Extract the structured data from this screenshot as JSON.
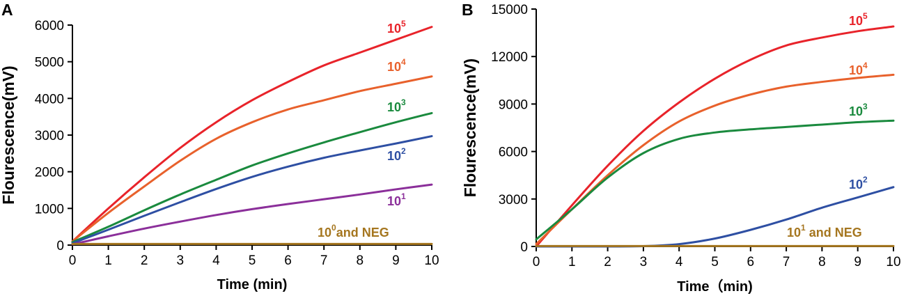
{
  "chart_data": [
    {
      "type": "line",
      "panel": "A",
      "xlabel": "Time (min)",
      "ylabel": "Flourescence(mV)",
      "xlim": [
        0,
        10
      ],
      "ylim": [
        0,
        6000
      ],
      "xticks": [
        0,
        1,
        2,
        3,
        4,
        5,
        6,
        7,
        8,
        9,
        10
      ],
      "yticks": [
        0,
        1000,
        2000,
        3000,
        4000,
        5000,
        6000
      ],
      "x": [
        0,
        1,
        2,
        3,
        4,
        5,
        6,
        7,
        8,
        9,
        10
      ],
      "series": [
        {
          "name": "10^5",
          "label_base": "10",
          "label_sup": "5",
          "label_suffix": "",
          "color": "#e8232a",
          "values": [
            100,
            1000,
            1850,
            2650,
            3350,
            3950,
            4450,
            4900,
            5250,
            5600,
            5950
          ]
        },
        {
          "name": "10^4",
          "label_base": "10",
          "label_sup": "4",
          "label_suffix": "",
          "color": "#e8612c",
          "values": [
            100,
            880,
            1600,
            2300,
            2900,
            3350,
            3700,
            3950,
            4200,
            4400,
            4600
          ]
        },
        {
          "name": "10^3",
          "label_base": "10",
          "label_sup": "3",
          "label_suffix": "",
          "color": "#1a8a3e",
          "values": [
            80,
            500,
            950,
            1380,
            1780,
            2170,
            2500,
            2800,
            3080,
            3350,
            3600
          ]
        },
        {
          "name": "10^2",
          "label_base": "10",
          "label_sup": "2",
          "label_suffix": "",
          "color": "#2e4fa3",
          "values": [
            50,
            420,
            800,
            1170,
            1530,
            1860,
            2140,
            2380,
            2580,
            2770,
            2970
          ]
        },
        {
          "name": "10^1",
          "label_base": "10",
          "label_sup": "1",
          "label_suffix": "",
          "color": "#8b2f9a",
          "values": [
            20,
            240,
            450,
            640,
            820,
            980,
            1120,
            1250,
            1380,
            1520,
            1650
          ]
        },
        {
          "name": "10^0 and NEG",
          "label_base": "10",
          "label_sup": "0",
          "label_suffix": "and NEG",
          "color": "#a5761f",
          "values": [
            30,
            30,
            30,
            30,
            30,
            30,
            30,
            30,
            30,
            30,
            30
          ]
        }
      ]
    },
    {
      "type": "line",
      "panel": "B",
      "xlabel": "Time（min)",
      "ylabel": "Flourescence(mV)",
      "xlim": [
        0,
        10
      ],
      "ylim": [
        0,
        15000
      ],
      "xticks": [
        0,
        1,
        2,
        3,
        4,
        5,
        6,
        7,
        8,
        9,
        10
      ],
      "yticks": [
        0,
        3000,
        6000,
        9000,
        12000,
        15000
      ],
      "x": [
        0,
        1,
        2,
        3,
        4,
        5,
        6,
        7,
        8,
        9,
        10
      ],
      "series": [
        {
          "name": "10^5",
          "label_base": "10",
          "label_sup": "5",
          "label_suffix": "",
          "color": "#e8232a",
          "values": [
            0,
            2600,
            5100,
            7300,
            9100,
            10600,
            11800,
            12700,
            13200,
            13600,
            13900
          ]
        },
        {
          "name": "10^4",
          "label_base": "10",
          "label_sup": "4",
          "label_suffix": "",
          "color": "#e8612c",
          "values": [
            150,
            2350,
            4500,
            6400,
            7900,
            8900,
            9600,
            10100,
            10400,
            10650,
            10850
          ]
        },
        {
          "name": "10^3",
          "label_base": "10",
          "label_sup": "3",
          "label_suffix": "",
          "color": "#1a8a3e",
          "values": [
            450,
            2350,
            4350,
            5900,
            6800,
            7200,
            7400,
            7550,
            7700,
            7850,
            7950
          ]
        },
        {
          "name": "10^2",
          "label_base": "10",
          "label_sup": "2",
          "label_suffix": "",
          "color": "#2e4fa3",
          "values": [
            0,
            0,
            0,
            20,
            150,
            500,
            1050,
            1700,
            2450,
            3100,
            3750
          ]
        },
        {
          "name": "10^1 and NEG",
          "label_base": "10",
          "label_sup": "1",
          "label_suffix": " and NEG",
          "color": "#a5761f",
          "values": [
            30,
            30,
            30,
            30,
            30,
            30,
            30,
            30,
            30,
            30,
            30
          ]
        }
      ]
    }
  ]
}
